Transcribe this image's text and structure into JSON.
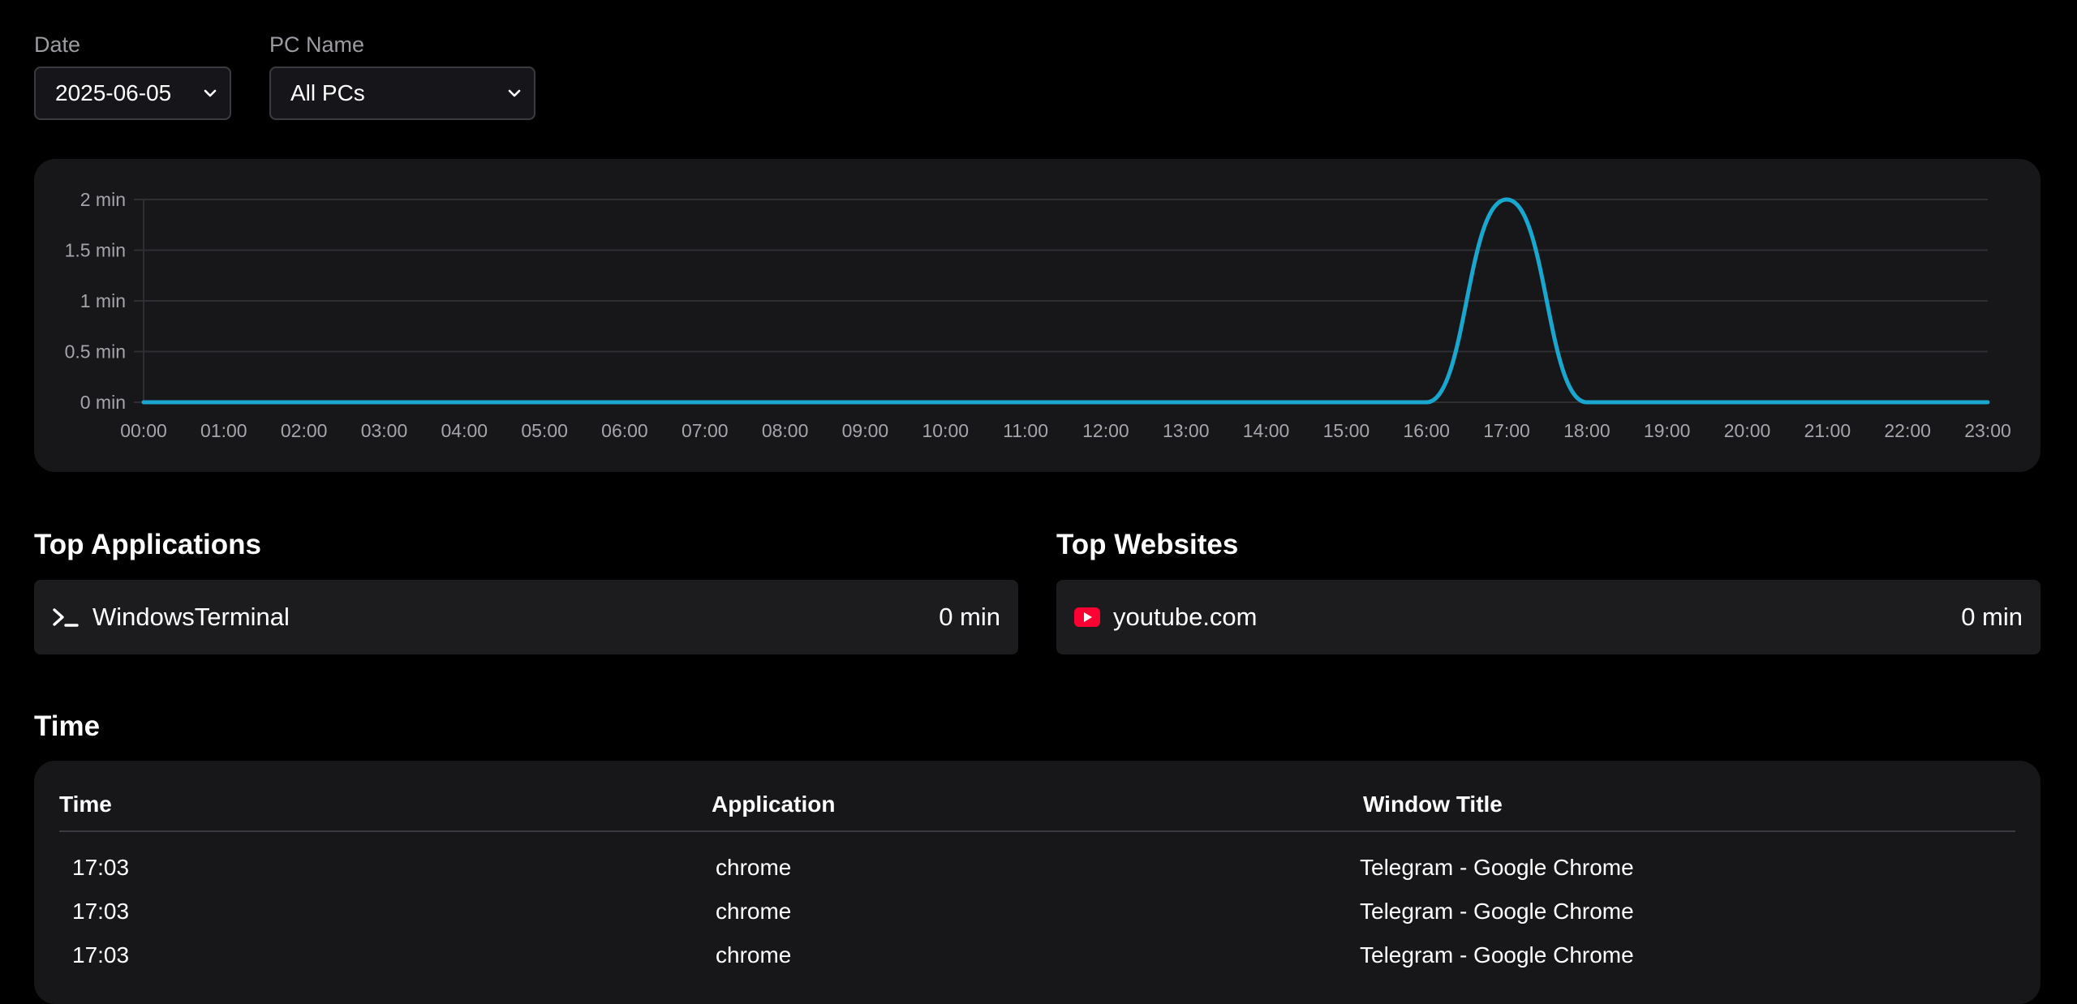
{
  "filters": {
    "date_label": "Date",
    "date_value": "2025-06-05",
    "pc_label": "PC Name",
    "pc_value": "All PCs"
  },
  "colors": {
    "accent": "#1aa7cf",
    "youtube": "#ff0033",
    "card": "#17171a",
    "row": "#1c1c1f"
  },
  "chart_data": {
    "type": "line",
    "x": [
      "00:00",
      "01:00",
      "02:00",
      "03:00",
      "04:00",
      "05:00",
      "06:00",
      "07:00",
      "08:00",
      "09:00",
      "10:00",
      "11:00",
      "12:00",
      "13:00",
      "14:00",
      "15:00",
      "16:00",
      "17:00",
      "18:00",
      "19:00",
      "20:00",
      "21:00",
      "22:00",
      "23:00"
    ],
    "series": [
      {
        "values": [
          0,
          0,
          0,
          0,
          0,
          0,
          0,
          0,
          0,
          0,
          0,
          0,
          0,
          0,
          0,
          0,
          0,
          2,
          0,
          0,
          0,
          0,
          0,
          0
        ]
      }
    ],
    "y_ticks": [
      "0 min",
      "0.5 min",
      "1 min",
      "1.5 min",
      "2 min"
    ],
    "ylim": [
      0,
      2
    ],
    "grid": true,
    "smooth": true
  },
  "top_apps": {
    "title": "Top Applications",
    "items": [
      {
        "icon": "terminal-icon",
        "name": "WindowsTerminal",
        "time": "0 min"
      }
    ]
  },
  "top_sites": {
    "title": "Top Websites",
    "items": [
      {
        "icon": "youtube-icon",
        "name": "youtube.com",
        "time": "0 min"
      }
    ]
  },
  "time_section": {
    "title": "Time",
    "headers": [
      "Time",
      "Application",
      "Window Title"
    ],
    "rows": [
      [
        "17:03",
        "chrome",
        "Telegram - Google Chrome"
      ],
      [
        "17:03",
        "chrome",
        "Telegram - Google Chrome"
      ],
      [
        "17:03",
        "chrome",
        "Telegram - Google Chrome"
      ]
    ]
  }
}
